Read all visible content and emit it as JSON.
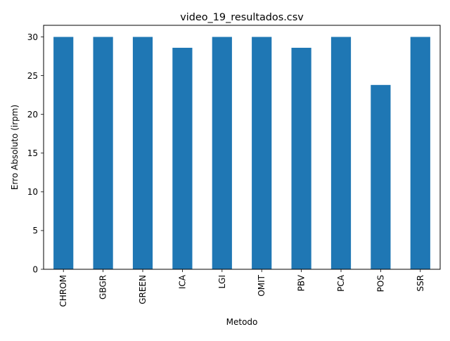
{
  "chart_data": {
    "type": "bar",
    "title": "video_19_resultados.csv",
    "xlabel": "Metodo",
    "ylabel": "Erro Absoluto (irpm)",
    "categories": [
      "CHROM",
      "GBGR",
      "GREEN",
      "ICA",
      "LGI",
      "OMIT",
      "PBV",
      "PCA",
      "POS",
      "SSR"
    ],
    "values": [
      30.0,
      30.0,
      30.0,
      28.6,
      30.0,
      30.0,
      28.6,
      30.0,
      23.8,
      30.0
    ],
    "ylim": [
      0,
      31.5
    ],
    "yticks": [
      0,
      5,
      10,
      15,
      20,
      25,
      30
    ],
    "bar_color": "#1f77b4",
    "grid": false,
    "legend": "none"
  }
}
